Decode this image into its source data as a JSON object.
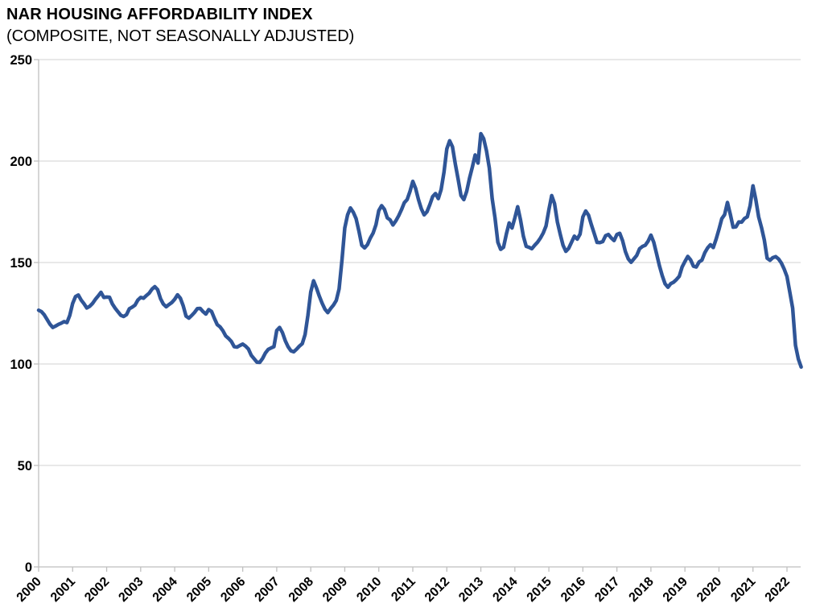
{
  "header": {
    "title": "NAR HOUSING AFFORDABILITY INDEX",
    "subtitle": "(COMPOSITE, NOT SEASONALLY ADJUSTED)"
  },
  "chart_data": {
    "type": "line",
    "title": "NAR HOUSING AFFORDABILITY INDEX",
    "subtitle": "(COMPOSITE, NOT SEASONALLY ADJUSTED)",
    "grid": "horizontal",
    "legend": "none",
    "x_axis": {
      "tick_labels": [
        "2000",
        "2001",
        "2002",
        "2003",
        "2004",
        "2005",
        "2006",
        "2007",
        "2008",
        "2009",
        "2010",
        "2011",
        "2012",
        "2013",
        "2014",
        "2015",
        "2016",
        "2017",
        "2018",
        "2019",
        "2020",
        "2021",
        "2022"
      ],
      "label_rotation_deg": -45
    },
    "y_axis": {
      "ticks": [
        0,
        50,
        100,
        150,
        200,
        250
      ],
      "range": [
        0,
        250
      ]
    },
    "series": [
      {
        "name": "Housing Affordability Index (Composite, Not Seasonally Adjusted)",
        "frequency": "monthly",
        "start_month": "2000-01",
        "end_month": "2022-06",
        "values": [
          126.5,
          125.8,
          124.2,
          121.9,
          119.6,
          118.0,
          118.7,
          119.5,
          120.1,
          120.9,
          120.4,
          124.0,
          129.8,
          133.2,
          134.0,
          131.5,
          129.7,
          127.6,
          128.4,
          129.8,
          131.8,
          133.5,
          135.3,
          132.8,
          133.0,
          132.9,
          129.6,
          127.5,
          125.7,
          124.0,
          123.4,
          124.3,
          127.2,
          128.0,
          129.0,
          131.5,
          132.8,
          132.4,
          133.7,
          134.9,
          136.9,
          138.1,
          136.6,
          132.2,
          129.5,
          128.2,
          129.3,
          130.3,
          131.9,
          134.1,
          132.4,
          128.7,
          123.6,
          122.6,
          123.9,
          125.4,
          127.3,
          127.4,
          125.8,
          124.6,
          126.8,
          125.9,
          122.5,
          119.4,
          118.3,
          116.4,
          113.8,
          112.6,
          111.1,
          108.5,
          108.3,
          109.1,
          109.8,
          108.8,
          107.4,
          104.3,
          102.6,
          100.9,
          100.8,
          102.7,
          105.4,
          107.2,
          107.9,
          108.5,
          116.5,
          118.0,
          115.5,
          111.5,
          108.5,
          106.5,
          106.0,
          107.3,
          108.8,
          110.0,
          114.5,
          124.0,
          135.5,
          141.0,
          137.5,
          133.5,
          130.0,
          127.0,
          125.3,
          127.3,
          129.0,
          131.3,
          137.0,
          151.0,
          167.0,
          173.5,
          176.9,
          174.8,
          171.6,
          165.4,
          158.5,
          157.2,
          158.8,
          162.0,
          164.5,
          168.6,
          175.6,
          178.0,
          176.2,
          172.0,
          171.0,
          168.5,
          170.5,
          173.0,
          176.0,
          179.5,
          181.0,
          185.0,
          190.0,
          186.5,
          181.0,
          176.5,
          173.5,
          175.0,
          178.5,
          182.5,
          184.0,
          181.5,
          186.0,
          194.5,
          206.0,
          210.0,
          207.0,
          198.5,
          191.0,
          183.0,
          181.0,
          185.0,
          191.5,
          197.0,
          203.0,
          199.0,
          213.5,
          211.0,
          205.0,
          196.5,
          181.5,
          172.0,
          160.0,
          156.5,
          157.5,
          164.0,
          169.5,
          167.0,
          172.0,
          177.5,
          171.0,
          163.0,
          158.0,
          157.5,
          156.8,
          158.5,
          160.0,
          162.0,
          164.5,
          168.0,
          176.0,
          183.0,
          179.0,
          170.0,
          164.0,
          158.5,
          155.5,
          157.0,
          160.0,
          163.0,
          161.5,
          164.0,
          172.5,
          175.4,
          173.3,
          168.6,
          164.3,
          159.9,
          159.8,
          160.3,
          163.2,
          163.8,
          162.1,
          160.8,
          163.8,
          164.4,
          160.8,
          155.4,
          151.8,
          150.1,
          151.8,
          153.5,
          156.8,
          157.9,
          158.5,
          160.5,
          163.5,
          160.0,
          154.3,
          148.4,
          143.5,
          139.5,
          137.8,
          139.6,
          140.3,
          141.6,
          143.2,
          147.8,
          150.5,
          153.0,
          151.3,
          148.2,
          147.8,
          150.3,
          151.2,
          154.8,
          157.2,
          158.8,
          157.4,
          161.5,
          166.3,
          171.6,
          173.6,
          179.6,
          173.8,
          167.4,
          167.6,
          170.0,
          169.9,
          171.7,
          172.5,
          178.0,
          187.8,
          181.0,
          172.5,
          167.3,
          161.1,
          152.1,
          151.1,
          152.4,
          152.9,
          151.8,
          149.8,
          146.8,
          143.1,
          135.4,
          127.5,
          109.2,
          102.5,
          98.5
        ]
      }
    ],
    "colors": {
      "line": "#2f5597",
      "gridline": "#d9d9d9",
      "axis": "#bfbfbf",
      "text": "#000000"
    }
  }
}
